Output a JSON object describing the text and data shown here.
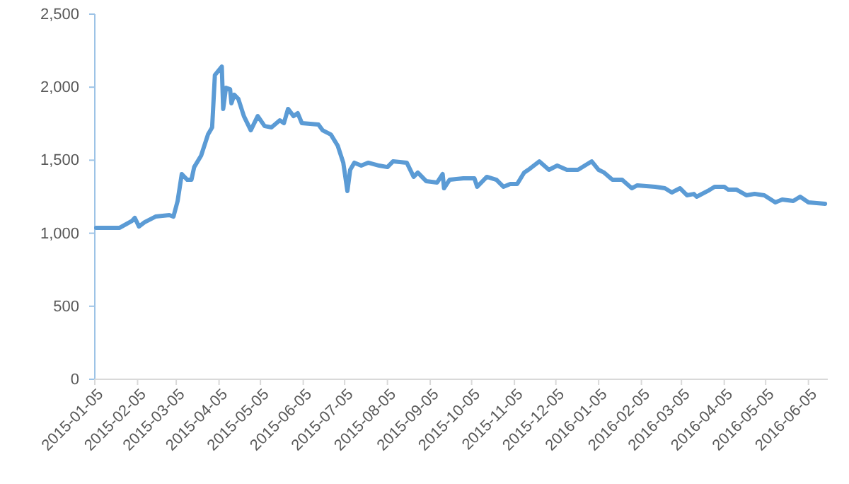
{
  "chart_data": {
    "type": "line",
    "grid": false,
    "marker": "none",
    "line_style": "solid",
    "xlim": [
      "2015-01-05",
      "2016-06-19"
    ],
    "xticks": [
      "2015-01-05",
      "2015-02-05",
      "2015-03-05",
      "2015-04-05",
      "2015-05-05",
      "2015-06-05",
      "2015-07-05",
      "2015-08-05",
      "2015-09-05",
      "2015-10-05",
      "2015-11-05",
      "2015-12-05",
      "2016-01-05",
      "2016-02-05",
      "2016-03-05",
      "2016-04-05",
      "2016-05-05",
      "2016-06-05"
    ],
    "ylim": [
      0,
      2500
    ],
    "yticks": [
      0,
      500,
      {
        "value": 1000,
        "label": "1,000"
      },
      {
        "value": 1500,
        "label": "1,500"
      },
      {
        "value": 2000,
        "label": "2,000"
      },
      {
        "value": 2500,
        "label": "2,500"
      }
    ],
    "x": [
      "2015-01-06",
      "2015-01-23",
      "2015-02-01",
      "2015-02-03",
      "2015-02-06",
      "2015-02-10",
      "2015-02-18",
      "2015-02-28",
      "2015-03-03",
      "2015-03-06",
      "2015-03-09",
      "2015-03-13",
      "2015-03-16",
      "2015-03-18",
      "2015-03-23",
      "2015-03-28",
      "2015-03-31",
      "2015-04-02",
      "2015-04-07",
      "2015-04-08",
      "2015-04-10",
      "2015-04-13",
      "2015-04-14",
      "2015-04-16",
      "2015-04-19",
      "2015-04-23",
      "2015-04-28",
      "2015-05-03",
      "2015-05-08",
      "2015-05-13",
      "2015-05-19",
      "2015-05-22",
      "2015-05-25",
      "2015-05-29",
      "2015-06-01",
      "2015-06-04",
      "2015-06-16",
      "2015-06-19",
      "2015-06-25",
      "2015-06-30",
      "2015-07-04",
      "2015-07-07",
      "2015-07-09",
      "2015-07-12",
      "2015-07-17",
      "2015-07-22",
      "2015-07-30",
      "2015-08-05",
      "2015-08-09",
      "2015-08-19",
      "2015-08-24",
      "2015-08-27",
      "2015-09-02",
      "2015-09-10",
      "2015-09-14",
      "2015-09-15",
      "2015-09-19",
      "2015-09-29",
      "2015-10-07",
      "2015-10-09",
      "2015-10-16",
      "2015-10-23",
      "2015-10-28",
      "2015-11-02",
      "2015-11-07",
      "2015-11-12",
      "2015-11-15",
      "2015-11-23",
      "2015-11-30",
      "2015-12-06",
      "2015-12-13",
      "2015-12-21",
      "2015-12-31",
      "2016-01-05",
      "2016-01-09",
      "2016-01-15",
      "2016-01-22",
      "2016-01-29",
      "2016-02-02",
      "2016-02-15",
      "2016-02-22",
      "2016-02-27",
      "2016-03-04",
      "2016-03-09",
      "2016-03-14",
      "2016-03-16",
      "2016-03-24",
      "2016-03-29",
      "2016-04-05",
      "2016-04-08",
      "2016-04-14",
      "2016-04-21",
      "2016-04-27",
      "2016-05-04",
      "2016-05-12",
      "2016-05-17",
      "2016-05-25",
      "2016-05-30",
      "2016-06-05",
      "2016-06-17"
    ],
    "series": [
      {
        "color": "#5b9bd5",
        "values": [
          1037,
          1037,
          1085,
          1105,
          1046,
          1075,
          1114,
          1124,
          1114,
          1221,
          1405,
          1366,
          1366,
          1453,
          1531,
          1676,
          1725,
          2083,
          2141,
          1851,
          1996,
          1986,
          1890,
          1948,
          1919,
          1802,
          1705,
          1802,
          1734,
          1725,
          1773,
          1754,
          1851,
          1802,
          1822,
          1754,
          1744,
          1705,
          1676,
          1599,
          1483,
          1289,
          1434,
          1483,
          1463,
          1483,
          1463,
          1453,
          1492,
          1483,
          1386,
          1415,
          1357,
          1347,
          1405,
          1308,
          1366,
          1376,
          1376,
          1318,
          1386,
          1366,
          1318,
          1337,
          1337,
          1415,
          1434,
          1492,
          1434,
          1463,
          1434,
          1434,
          1492,
          1434,
          1415,
          1366,
          1366,
          1308,
          1328,
          1318,
          1308,
          1279,
          1308,
          1260,
          1269,
          1250,
          1289,
          1318,
          1318,
          1298,
          1298,
          1260,
          1269,
          1260,
          1211,
          1231,
          1221,
          1250,
          1211,
          1202
        ]
      }
    ]
  }
}
